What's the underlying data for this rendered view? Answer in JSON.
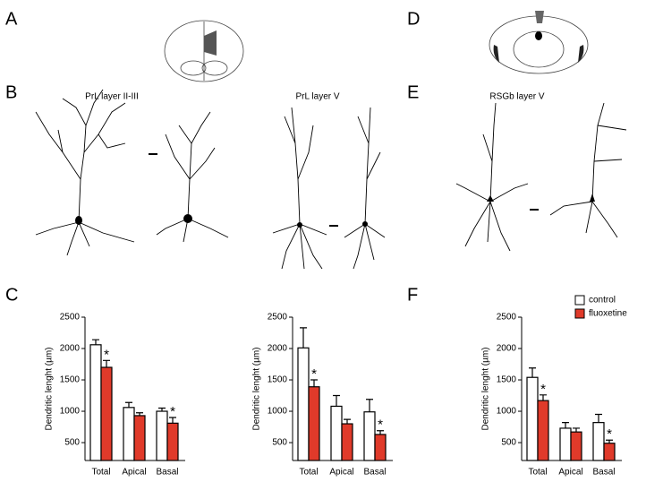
{
  "panels": {
    "a": "A",
    "b": "B",
    "c": "C",
    "d": "D",
    "e": "E",
    "f": "F"
  },
  "neuron_labels": [
    "PrL layer II-III",
    "PrL layer V",
    "RSGb  layer V"
  ],
  "chart_data": [
    {
      "type": "bar",
      "y_label": "Dendritic lenght (µm)",
      "categories": [
        "Total",
        "Apical",
        "Basal"
      ],
      "series": [
        {
          "color": "#ffffff",
          "values": [
            2060,
            1060,
            1000
          ],
          "errors": [
            80,
            80,
            50
          ]
        },
        {
          "color": "#e03a2a",
          "values": [
            1700,
            930,
            810
          ],
          "errors": [
            110,
            45,
            90
          ],
          "value_labels": [
            "*",
            null,
            "*"
          ]
        }
      ],
      "ylim": [
        215,
        2500
      ],
      "yticks": [
        500,
        1000,
        1500,
        2000,
        2500
      ]
    },
    {
      "type": "bar",
      "y_label": "Dendritic lenght (µm)",
      "categories": [
        "Total",
        "Apical",
        "Basal"
      ],
      "series": [
        {
          "color": "#ffffff",
          "values": [
            2010,
            1080,
            990
          ],
          "errors": [
            320,
            170,
            200
          ]
        },
        {
          "color": "#e03a2a",
          "values": [
            1390,
            800,
            630
          ],
          "errors": [
            110,
            70,
            60
          ],
          "value_labels": [
            "*",
            null,
            "*"
          ]
        }
      ],
      "ylim": [
        215,
        2500
      ],
      "yticks": [
        500,
        1000,
        1500,
        2000,
        2500
      ]
    },
    {
      "type": "bar",
      "y_label": "Dendritic lenght (µm)",
      "categories": [
        "Total",
        "Apical",
        "Basal"
      ],
      "legend": "top-right",
      "series": [
        {
          "name": "control",
          "color": "#ffffff",
          "values": [
            1540,
            730,
            820
          ],
          "errors": [
            150,
            90,
            130
          ]
        },
        {
          "name": "fluoxetine",
          "color": "#e03a2a",
          "values": [
            1170,
            670,
            490
          ],
          "errors": [
            90,
            60,
            50
          ],
          "value_labels": [
            "*",
            null,
            "*"
          ]
        }
      ],
      "ylim": [
        215,
        2500
      ],
      "yticks": [
        500,
        1000,
        1500,
        2000,
        2500
      ]
    }
  ]
}
